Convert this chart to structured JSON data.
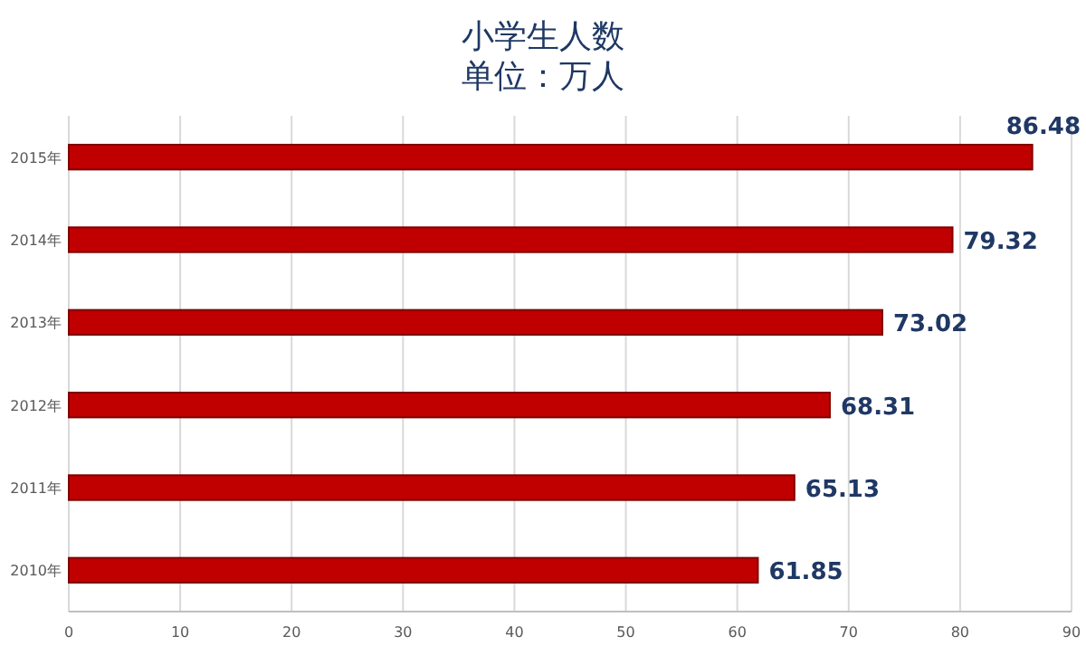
{
  "chart_data": {
    "type": "bar",
    "orientation": "horizontal",
    "title": "小学生人数",
    "subtitle": "单位：万人",
    "categories": [
      "2015年",
      "2014年",
      "2013年",
      "2012年",
      "2011年",
      "2010年"
    ],
    "values": [
      86.48,
      79.32,
      73.02,
      68.31,
      65.13,
      61.85
    ],
    "color": "#c00000",
    "xlim": [
      0,
      90
    ],
    "xticks": [
      0,
      10,
      20,
      30,
      40,
      50,
      60,
      70,
      80,
      90
    ],
    "grid": "x",
    "data_labels": true
  }
}
